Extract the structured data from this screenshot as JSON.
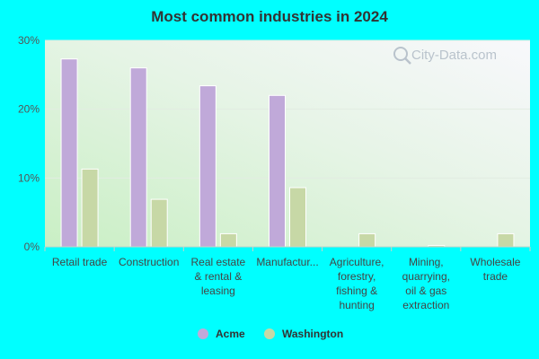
{
  "chart_data": {
    "type": "bar",
    "title": "Most common industries in 2024",
    "xlabel": "",
    "ylabel": "",
    "ylim": [
      0,
      30
    ],
    "yticks": [
      0,
      10,
      20,
      30
    ],
    "ytick_labels": [
      "0%",
      "10%",
      "20%",
      "30%"
    ],
    "categories": [
      [
        "Retail trade"
      ],
      [
        "Construction"
      ],
      [
        "Real estate",
        "& rental &",
        "leasing"
      ],
      [
        "Manufactur..."
      ],
      [
        "Agriculture,",
        "forestry,",
        "fishing &",
        "hunting"
      ],
      [
        "Mining,",
        "quarrying,",
        "oil & gas",
        "extraction"
      ],
      [
        "Wholesale",
        "trade"
      ]
    ],
    "series": [
      {
        "name": "Acme",
        "color": "#c0a9d9",
        "values": [
          27.3,
          26.0,
          23.4,
          22.0,
          0,
          0,
          0
        ]
      },
      {
        "name": "Washington",
        "color": "#c7d8a6",
        "values": [
          11.3,
          6.9,
          1.9,
          8.6,
          1.9,
          0.2,
          1.9
        ]
      }
    ],
    "legend_position": "bottom",
    "grid": true
  },
  "watermark": {
    "text": "City-Data.com",
    "icon": "magnifier-icon"
  }
}
